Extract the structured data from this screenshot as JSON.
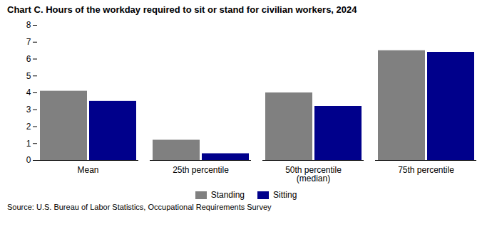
{
  "chart_data": {
    "type": "bar",
    "title": "Chart C. Hours of the workday required to sit or stand for civilian workers,  2024",
    "categories": [
      "Mean",
      "25th percentile",
      "50th percentile\n(median)",
      "75th percentile"
    ],
    "series": [
      {
        "name": "Standing",
        "color": "#808080",
        "values": [
          4.1,
          1.2,
          4.0,
          6.5
        ]
      },
      {
        "name": "Sitting",
        "color": "#00008B",
        "values": [
          3.5,
          0.4,
          3.2,
          6.4
        ]
      }
    ],
    "ylim": [
      0,
      8
    ],
    "yticks": [
      0,
      1,
      2,
      3,
      4,
      5,
      6,
      7,
      8
    ],
    "grid": false,
    "legend": "bottom",
    "source": "Source: U.S. Bureau of Labor Statistics, Occupational Requirements Survey"
  }
}
